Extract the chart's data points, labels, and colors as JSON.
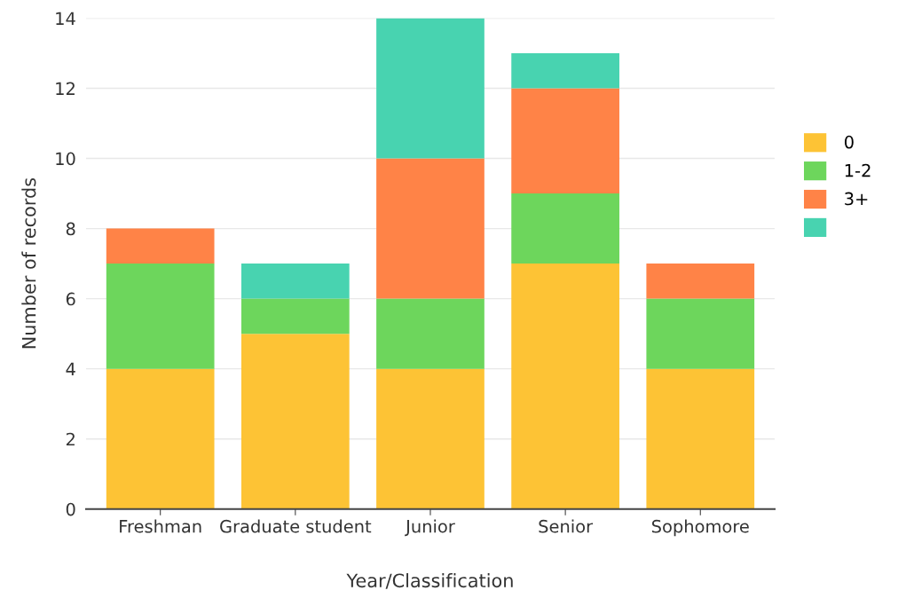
{
  "chart_data": {
    "type": "bar",
    "stacked": true,
    "xlabel": "Year/Classification",
    "ylabel": "Number of records",
    "categories": [
      "Freshman",
      "Graduate student",
      "Junior",
      "Senior",
      "Sophomore"
    ],
    "series": [
      {
        "name": "0",
        "color": "#fdc335",
        "values": [
          4,
          5,
          4,
          7,
          4
        ]
      },
      {
        "name": "1-2",
        "color": "#6dd65c",
        "values": [
          3,
          1,
          2,
          2,
          2
        ]
      },
      {
        "name": "3+",
        "color": "#ff8347",
        "values": [
          1,
          0,
          4,
          3,
          1
        ]
      },
      {
        "color": "#48d3b0",
        "values": [
          0,
          1,
          4,
          1,
          0
        ]
      }
    ],
    "ylim": [
      0,
      14
    ],
    "yticks": [
      0,
      2,
      4,
      6,
      8,
      10,
      12,
      14
    ],
    "grid": "y",
    "legend": "right"
  }
}
